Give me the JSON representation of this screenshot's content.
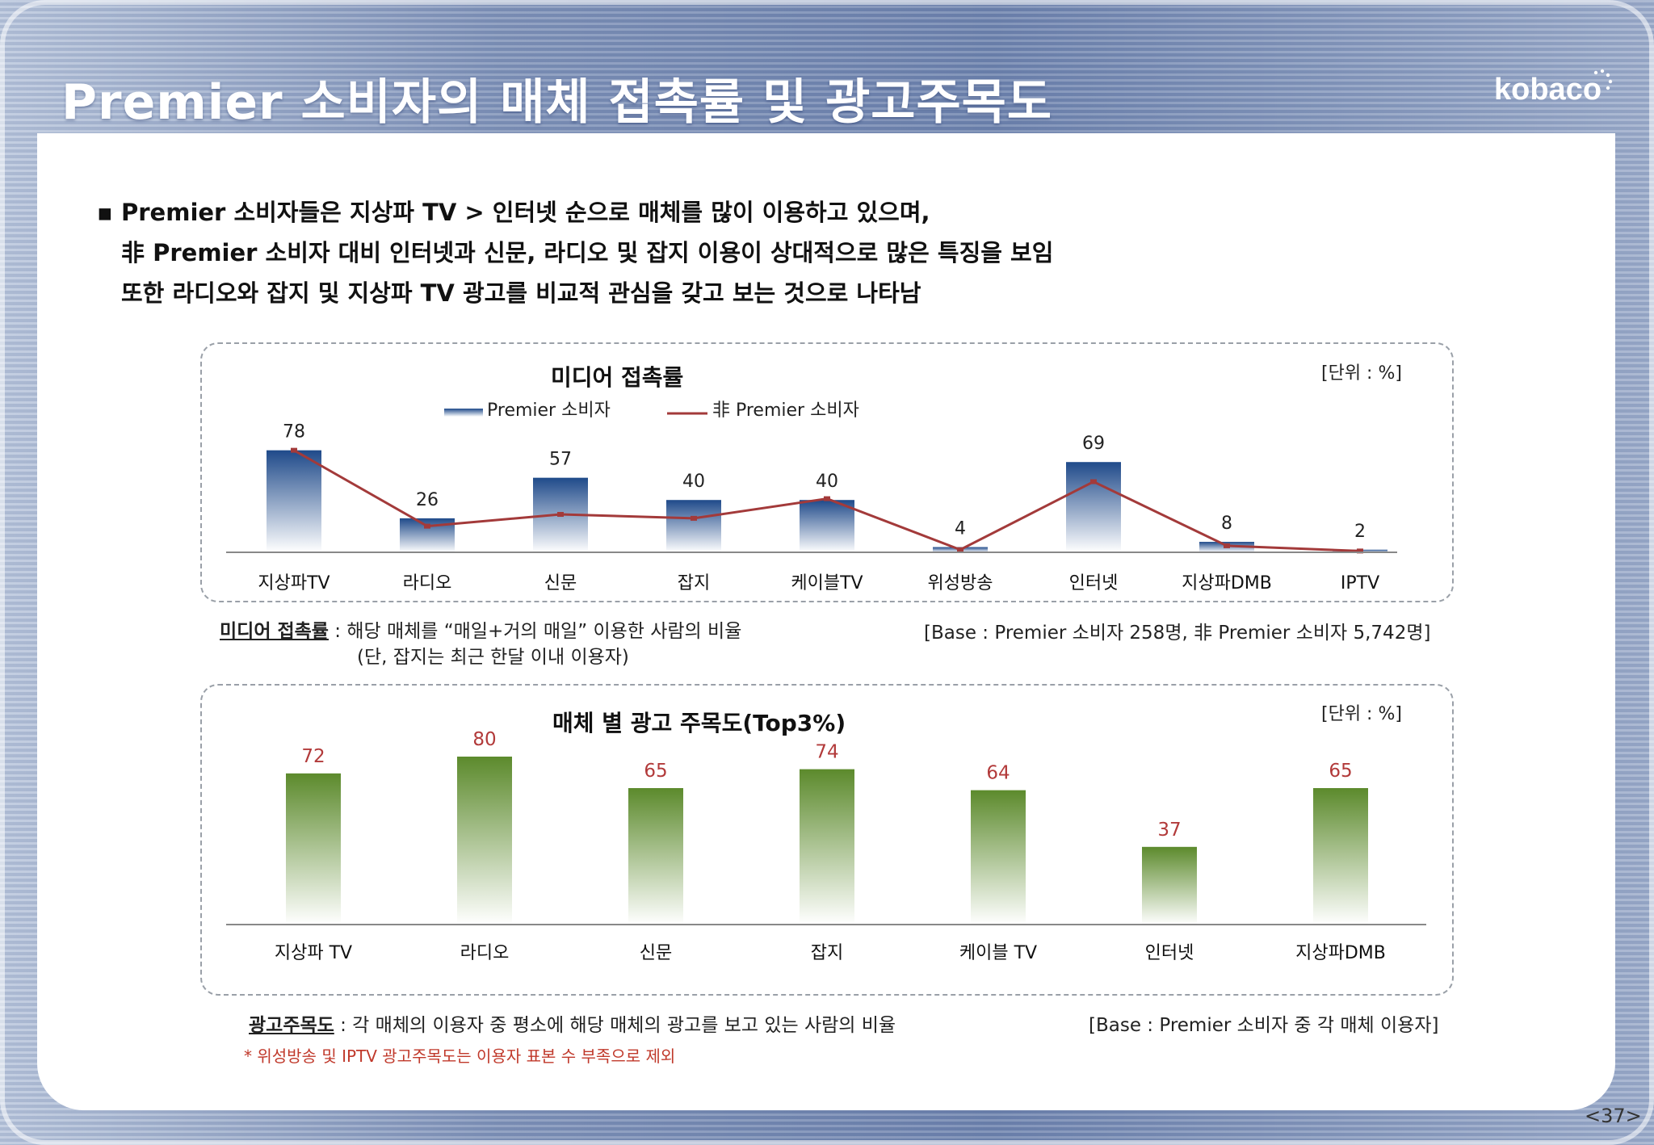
{
  "header": {
    "title": "Premier 소비자의 매체 접촉률 및 광고주목도",
    "logo": "kobaco"
  },
  "summary": {
    "bullets": [
      "Premier 소비자들은 지상파 TV > 인터넷 순으로 매체를 많이 이용하고 있으며,",
      "非 Premier 소비자 대비 인터넷과 신문, 라디오 및 잡지 이용이 상대적으로 많은 특징을 보임",
      "또한 라디오와 잡지 및 지상파 TV 광고를 비교적 관심을 갖고 보는 것으로 나타남"
    ]
  },
  "chart_data": [
    {
      "type": "bar",
      "title": "미디어 접촉률",
      "unit_label": "[단위 : %]",
      "categories": [
        "지상파TV",
        "라디오",
        "신문",
        "잡지",
        "케이블TV",
        "위성방송",
        "인터넷",
        "지상파DMB",
        "IPTV"
      ],
      "series": [
        {
          "name": "Premier 소비자",
          "kind": "bar",
          "color": "#2f5597",
          "values": [
            78,
            26,
            57,
            40,
            40,
            4,
            69,
            8,
            2
          ]
        },
        {
          "name": "非 Premier 소비자",
          "kind": "line",
          "color": "#a33a3a",
          "values": [
            78,
            20,
            29,
            26,
            41,
            2,
            54,
            5,
            1
          ]
        }
      ],
      "ylim": [
        0,
        100
      ],
      "legend": "top",
      "grid": false
    },
    {
      "type": "bar",
      "title": "매체 별 광고 주목도(Top3%)",
      "unit_label": "[단위 : %]",
      "categories": [
        "지상파 TV",
        "라디오",
        "신문",
        "잡지",
        "케이블 TV",
        "인터넷",
        "지상파DMB"
      ],
      "series": [
        {
          "name": "",
          "kind": "bar",
          "color": "#6f9a3c",
          "values": [
            72,
            80,
            65,
            74,
            64,
            37,
            65
          ]
        }
      ],
      "ylim": [
        0,
        100
      ],
      "grid": false
    }
  ],
  "notes": {
    "media_term": "미디어 접촉률",
    "media_def": " : 해당 매체를 “매일+거의 매일” 이용한 사람의 비율",
    "media_def2": "(단, 잡지는 최근 한달 이내 이용자)",
    "media_base": "[Base : Premier 소비자 258명, 非 Premier 소비자 5,742명]",
    "ad_term": "광고주목도",
    "ad_def": " : 각 매체의 이용자 중 평소에 해당 매체의 광고를 보고 있는 사람의 비율",
    "ad_base": "[Base : Premier 소비자 중 각 매체 이용자]",
    "ad_footnote": "* 위성방송 및 IPTV 광고주목도는 이용자 표본 수 부족으로 제외"
  },
  "page": {
    "number": "<37>"
  }
}
